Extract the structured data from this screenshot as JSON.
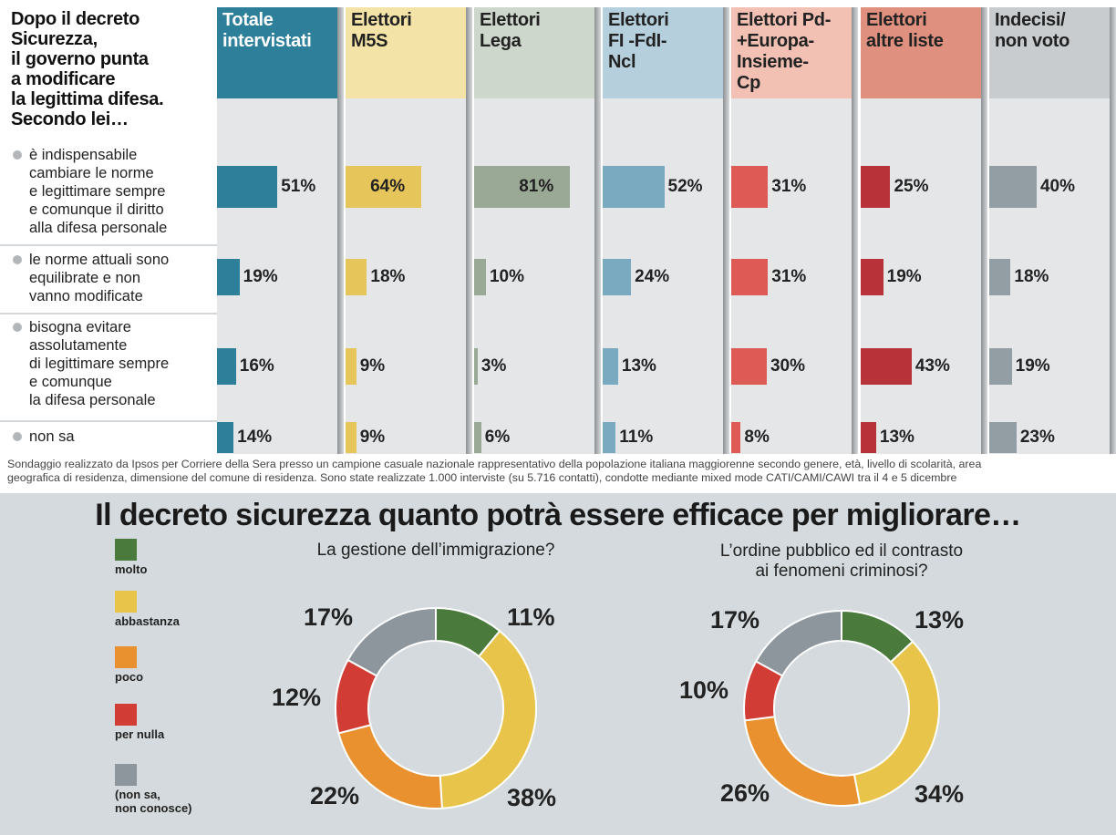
{
  "top_chart": {
    "question_lines": [
      "Dopo il decreto",
      "Sicurezza,",
      "il governo punta",
      "a modificare",
      "la legittima difesa.",
      "Secondo lei…"
    ],
    "groups": [
      {
        "label_lines": [
          "Totale",
          "intervistati"
        ],
        "head_color": "#2e7f9a",
        "head_text_color": "#ffffff",
        "bar_color": "#2e7f9a"
      },
      {
        "label_lines": [
          "Elettori",
          "M5S"
        ],
        "head_color": "#f4e3a6",
        "head_text_color": "#222222",
        "bar_color": "#e6c65a"
      },
      {
        "label_lines": [
          "Elettori",
          "Lega"
        ],
        "head_color": "#cdd7cb",
        "head_text_color": "#222222",
        "bar_color": "#9aa896"
      },
      {
        "label_lines": [
          "Elettori",
          "FI -FdI-",
          "Ncl"
        ],
        "head_color": "#b6cfdc",
        "head_text_color": "#222222",
        "bar_color": "#7aaabf"
      },
      {
        "label_lines": [
          "Elettori Pd-",
          "+Europa-",
          "Insieme-",
          "Cp"
        ],
        "head_color": "#f2c1b4",
        "head_text_color": "#222222",
        "bar_color": "#dd5a55"
      },
      {
        "label_lines": [
          "Elettori",
          "altre liste"
        ],
        "head_color": "#e0907f",
        "head_text_color": "#222222",
        "bar_color": "#b73339"
      },
      {
        "label_lines": [
          "Indecisi/",
          "non voto"
        ],
        "head_color": "#c8ccce",
        "head_text_color": "#222222",
        "bar_color": "#929da4"
      }
    ],
    "answers": [
      {
        "label_lines": [
          "è indispensabile",
          "cambiare le norme",
          "e legittimare sempre",
          "e comunque il diritto",
          "alla difesa personale"
        ],
        "values": [
          51,
          64,
          81,
          52,
          31,
          25,
          40
        ],
        "value_labels": [
          "51%",
          "64%",
          "81%",
          "52%",
          "31%",
          "25%",
          "40%"
        ]
      },
      {
        "label_lines": [
          "le norme attuali sono",
          "equilibrate e non",
          "vanno modificate"
        ],
        "values": [
          19,
          18,
          10,
          24,
          31,
          19,
          18
        ],
        "value_labels": [
          "19%",
          "18%",
          "10%",
          "24%",
          "31%",
          "19%",
          "18%"
        ]
      },
      {
        "label_lines": [
          "bisogna evitare",
          "assolutamente",
          "di legittimare sempre",
          "e comunque",
          "la difesa personale"
        ],
        "values": [
          16,
          9,
          3,
          13,
          30,
          43,
          19
        ],
        "value_labels": [
          "16%",
          "9%",
          "3%",
          "13%",
          "30%",
          "43%",
          "19%"
        ]
      },
      {
        "label_lines": [
          "non sa"
        ],
        "values": [
          14,
          9,
          6,
          11,
          8,
          13,
          23
        ],
        "value_labels": [
          "14%",
          "9%",
          "6%",
          "11%",
          "8%",
          "13%",
          "23%"
        ]
      }
    ],
    "note_lines": [
      "Sondaggio realizzato da Ipsos per Corriere della Sera presso un campione casuale nazionale rappresentativo della popolazione italiana maggiorenne secondo genere, età, livello di scolarità, area",
      "geografica di residenza, dimensione del comune di residenza. Sono state realizzate 1.000 interviste (su 5.716 contatti), condotte mediante mixed mode CATI/CAMI/CAWI tra il 4 e 5 dicembre"
    ]
  },
  "bottom_chart": {
    "title": "Il decreto sicurezza quanto potrà essere efficace per migliorare…",
    "legend": [
      {
        "label_lines": [
          "molto"
        ],
        "color": "#4a7a3c"
      },
      {
        "label_lines": [
          "abbastanza"
        ],
        "color": "#e8c54a"
      },
      {
        "label_lines": [
          "poco"
        ],
        "color": "#e8912e"
      },
      {
        "label_lines": [
          "per nulla"
        ],
        "color": "#d13c34"
      },
      {
        "label_lines": [
          "(non sa,",
          "non conosce)"
        ],
        "color": "#8c969c"
      }
    ]
  },
  "chart_data": [
    {
      "type": "bar",
      "title": "Dopo il decreto Sicurezza, il governo punta a modificare la legittima difesa. Secondo lei…",
      "categories": [
        "è indispensabile cambiare le norme e legittimare sempre e comunque il diritto alla difesa personale",
        "le norme attuali sono equilibrate e non vanno modificate",
        "bisogna evitare assolutamente di legittimare sempre e comunque la difesa personale",
        "non sa"
      ],
      "series": [
        {
          "name": "Totale intervistati",
          "values": [
            51,
            19,
            16,
            14
          ]
        },
        {
          "name": "Elettori M5S",
          "values": [
            64,
            18,
            9,
            9
          ]
        },
        {
          "name": "Elettori Lega",
          "values": [
            81,
            10,
            3,
            6
          ]
        },
        {
          "name": "Elettori FI -FdI-Ncl",
          "values": [
            52,
            24,
            13,
            11
          ]
        },
        {
          "name": "Elettori Pd-+Europa-Insieme-Cp",
          "values": [
            31,
            31,
            30,
            8
          ]
        },
        {
          "name": "Elettori altre liste",
          "values": [
            25,
            19,
            43,
            13
          ]
        },
        {
          "name": "Indecisi/non voto",
          "values": [
            40,
            18,
            19,
            23
          ]
        }
      ],
      "unit": "%"
    },
    {
      "type": "pie",
      "title_lines": [
        "La gestione dell’immigrazione?"
      ],
      "labels": [
        "molto",
        "abbastanza",
        "poco",
        "per nulla",
        "(non sa, non conosce)"
      ],
      "values": [
        11,
        38,
        22,
        12,
        17
      ],
      "value_labels": [
        "11%",
        "38%",
        "22%",
        "12%",
        "17%"
      ]
    },
    {
      "type": "pie",
      "title_lines": [
        "L’ordine pubblico ed il contrasto",
        "ai fenomeni criminosi?"
      ],
      "labels": [
        "molto",
        "abbastanza",
        "poco",
        "per nulla",
        "(non sa, non conosce)"
      ],
      "values": [
        13,
        34,
        26,
        10,
        17
      ],
      "value_labels": [
        "13%",
        "34%",
        "26%",
        "10%",
        "17%"
      ]
    }
  ]
}
